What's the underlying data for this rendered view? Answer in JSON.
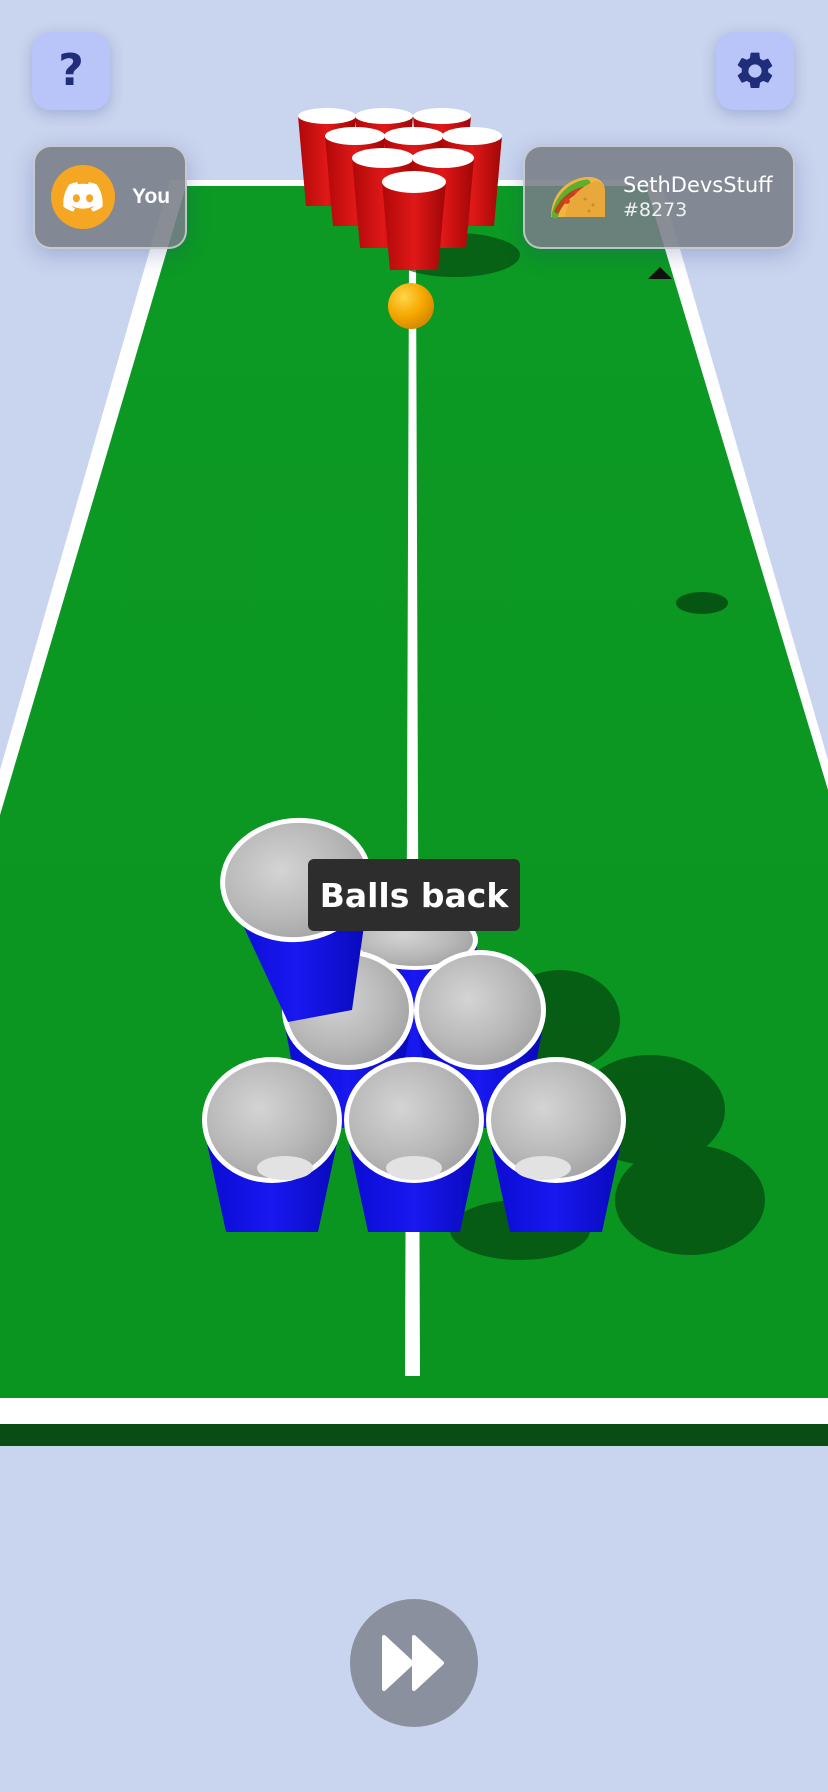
{
  "hud": {
    "help_icon": "question-icon",
    "settings_icon": "gear-icon",
    "skip_icon": "fast-forward-icon"
  },
  "players": {
    "you": {
      "label": "You",
      "avatar_icon": "discord-icon",
      "avatar_color": "#f5a623"
    },
    "opponent": {
      "name": "SethDevsStuff",
      "tag": "#8273",
      "avatar_icon": "taco-icon"
    }
  },
  "game": {
    "status_label": "Balls back",
    "player_cups_remaining": 7,
    "opponent_cups_remaining": 10
  },
  "colors": {
    "background": "#c9d4ee",
    "table": "#0a9420",
    "player_cup": "#1010e0",
    "opponent_cup": "#d01010",
    "ball": "#f5a800",
    "button": "#b9c4f8"
  }
}
